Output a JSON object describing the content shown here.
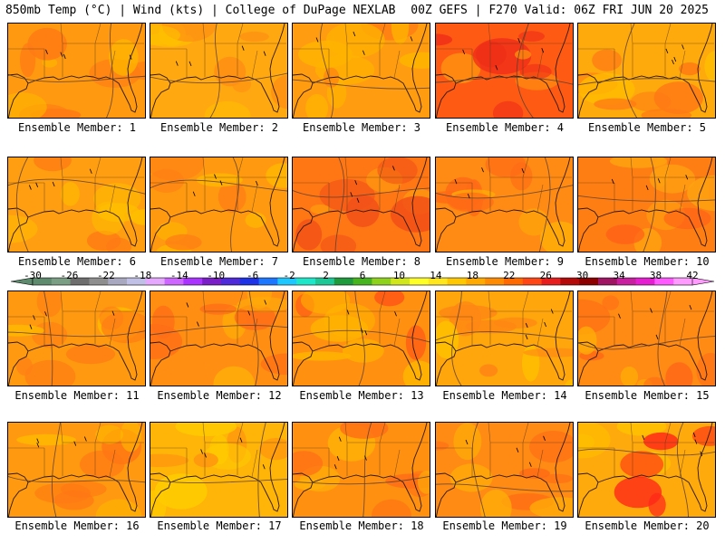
{
  "header": {
    "left": "850mb Temp (°C) | Wind (kts) | College of DuPage NEXLAB",
    "right": "00Z GEFS | F270 Valid: 06Z FRI JUN 20 2025"
  },
  "panels": [
    {
      "label": "Ensemble Member: 1",
      "base": "#ff9a10",
      "warm": "#ff7a14",
      "cool": "#ffb400"
    },
    {
      "label": "Ensemble Member: 2",
      "base": "#ffa810",
      "warm": "#ff8e14",
      "cool": "#ffc000"
    },
    {
      "label": "Ensemble Member: 3",
      "base": "#ff9c10",
      "warm": "#ff7e14",
      "cool": "#ffb400"
    },
    {
      "label": "Ensemble Member: 4",
      "base": "#ff5a14",
      "warm": "#ee2a18",
      "cool": "#ff8e10"
    },
    {
      "label": "Ensemble Member: 5",
      "base": "#ffaa0c",
      "warm": "#ff7a14",
      "cool": "#ffc000"
    },
    {
      "label": "Ensemble Member: 6",
      "base": "#ff9e10",
      "warm": "#ff7a14",
      "cool": "#ffbe00"
    },
    {
      "label": "Ensemble Member: 7",
      "base": "#ff9a10",
      "warm": "#ff7e14",
      "cool": "#ffb800"
    },
    {
      "label": "Ensemble Member: 8",
      "base": "#ff7614",
      "warm": "#f25018",
      "cool": "#ff9a10"
    },
    {
      "label": "Ensemble Member: 9",
      "base": "#ff8a14",
      "warm": "#ff6a16",
      "cool": "#ffac08"
    },
    {
      "label": "Ensemble Member: 10",
      "base": "#ff7e14",
      "warm": "#ff5e18",
      "cool": "#ffa410"
    },
    {
      "label": "Ensemble Member: 11",
      "base": "#ff9a10",
      "warm": "#ff7e14",
      "cool": "#ffb800"
    },
    {
      "label": "Ensemble Member: 12",
      "base": "#ff8e12",
      "warm": "#ff6e16",
      "cool": "#ffae08"
    },
    {
      "label": "Ensemble Member: 13",
      "base": "#ff9010",
      "warm": "#ff5018",
      "cool": "#ffb400"
    },
    {
      "label": "Ensemble Member: 14",
      "base": "#ffa60c",
      "warm": "#ff8614",
      "cool": "#ffc000"
    },
    {
      "label": "Ensemble Member: 15",
      "base": "#ff8a14",
      "warm": "#ff6a16",
      "cool": "#ffac08"
    },
    {
      "label": "Ensemble Member: 16",
      "base": "#ff9a10",
      "warm": "#ff7614",
      "cool": "#ffb800"
    },
    {
      "label": "Ensemble Member: 17",
      "base": "#ffb408",
      "warm": "#ff9210",
      "cool": "#ffcc00"
    },
    {
      "label": "Ensemble Member: 18",
      "base": "#ff9010",
      "warm": "#ff6e16",
      "cool": "#ffae08"
    },
    {
      "label": "Ensemble Member: 19",
      "base": "#ff8a14",
      "warm": "#ff6a16",
      "cool": "#ffac08"
    },
    {
      "label": "Ensemble Member: 20",
      "base": "#ffaa0c",
      "warm": "#ff2a18",
      "cool": "#ffc000"
    }
  ],
  "colorbar": {
    "labels": [
      "-30",
      "-26",
      "-22",
      "-18",
      "-14",
      "-10",
      "-6",
      "-2",
      "2",
      "6",
      "10",
      "14",
      "18",
      "22",
      "26",
      "30",
      "34",
      "38",
      "42"
    ],
    "colors": [
      "#5e8a6e",
      "#7a9e84",
      "#6e6e6e",
      "#8e8e8e",
      "#a8a8c0",
      "#c0c0e6",
      "#e6a8ff",
      "#cc66ff",
      "#aa33ff",
      "#7a1ec8",
      "#4e2ad8",
      "#1e32e6",
      "#1e78ff",
      "#1ec8ff",
      "#1ee6c8",
      "#1ec896",
      "#1e9a3c",
      "#46b41e",
      "#8ed21e",
      "#d2e61e",
      "#ffff28",
      "#ffe61e",
      "#ffc800",
      "#ffaa00",
      "#ff8c00",
      "#ff6a00",
      "#ff4614",
      "#e61e1e",
      "#b40a0a",
      "#8c0000",
      "#a01464",
      "#c81ea0",
      "#e61ed2",
      "#ff5aff",
      "#ff9aff"
    ]
  }
}
